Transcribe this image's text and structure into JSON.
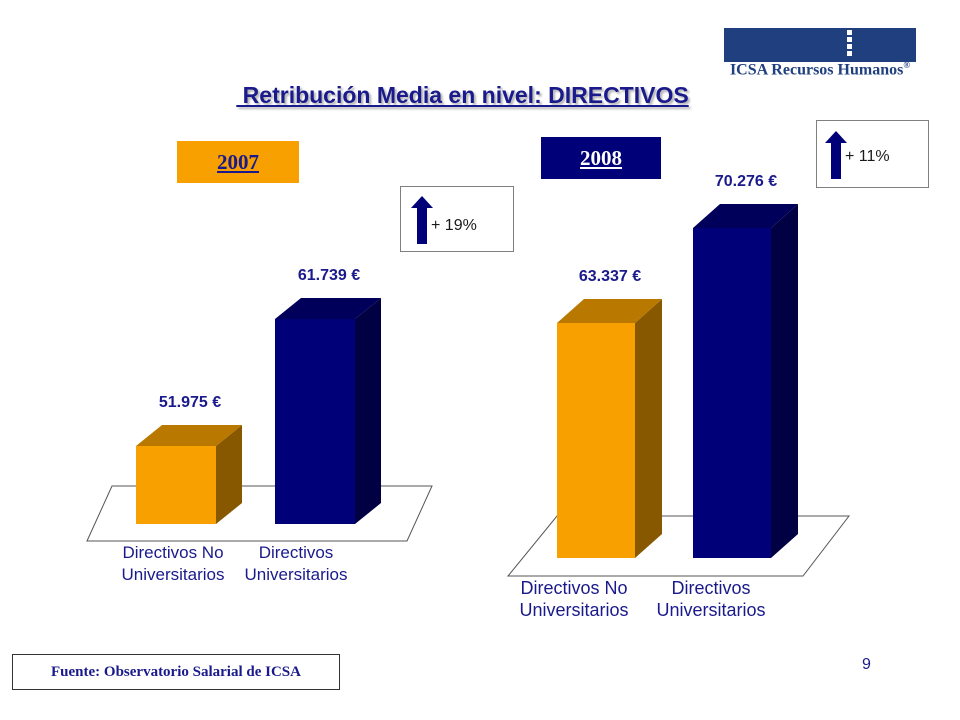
{
  "logo": {
    "text": "ICSA Recursos Humanos",
    "mark": "®",
    "color": "#1f3f7f"
  },
  "title": " Retribución Media en nivel: DIRECTIVOS",
  "colors": {
    "orange": "#f7a000",
    "blue": "#000078",
    "title": "#1a1a8c"
  },
  "chart_data": [
    {
      "type": "bar",
      "year_label": "2007",
      "categories": [
        "Directivos No\nUniversitarios",
        "Directivos\nUniversitarios"
      ],
      "values": [
        51975,
        61739
      ],
      "value_labels": [
        "51.975 €",
        "61.739 €"
      ],
      "colors": [
        "#f7a000",
        "#000078"
      ],
      "change_label": "+ 19%",
      "change_icon": "up-arrow-icon"
    },
    {
      "type": "bar",
      "year_label": "2008",
      "categories": [
        "Directivos No\nUniversitarios",
        "Directivos\nUniversitarios"
      ],
      "values": [
        63337,
        70276
      ],
      "value_labels": [
        "63.337 €",
        "70.276 €"
      ],
      "colors": [
        "#f7a000",
        "#000078"
      ],
      "change_label": "+ 11%",
      "change_icon": "up-arrow-icon"
    }
  ],
  "source": "Fuente: Observatorio Salarial de ICSA",
  "page_number": "9"
}
